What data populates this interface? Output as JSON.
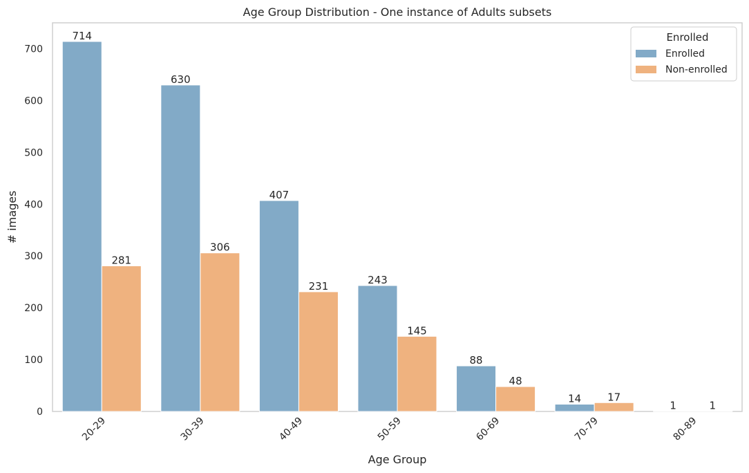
{
  "chart_data": {
    "type": "bar",
    "title": "Age Group Distribution - One instance of Adults subsets",
    "xlabel": "Age Group",
    "ylabel": "# images",
    "ylim": [
      0,
      750
    ],
    "yticks": [
      0,
      100,
      200,
      300,
      400,
      500,
      600,
      700
    ],
    "grid": false,
    "categories": [
      "20-29",
      "30-39",
      "40-49",
      "50-59",
      "60-69",
      "70-79",
      "80-89"
    ],
    "series": [
      {
        "name": "Enrolled",
        "color": "#82aac7",
        "values": [
          714,
          630,
          407,
          243,
          88,
          14,
          1
        ]
      },
      {
        "name": "Non-enrolled",
        "color": "#efb27f",
        "values": [
          281,
          306,
          231,
          145,
          48,
          17,
          1
        ]
      }
    ],
    "legend": {
      "title": "Enrolled",
      "position": "top-right"
    }
  }
}
